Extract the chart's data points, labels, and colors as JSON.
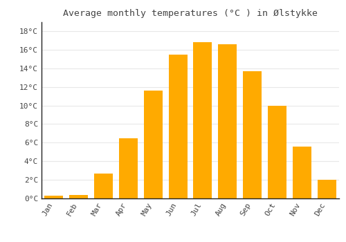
{
  "title": "Average monthly temperatures (°C ) in Ølstykke",
  "months": [
    "Jan",
    "Feb",
    "Mar",
    "Apr",
    "May",
    "Jun",
    "Jul",
    "Aug",
    "Sep",
    "Oct",
    "Nov",
    "Dec"
  ],
  "values": [
    0.3,
    0.4,
    2.7,
    6.5,
    11.6,
    15.5,
    16.8,
    16.6,
    13.7,
    10.0,
    5.6,
    2.0
  ],
  "bar_color": "#FFAA00",
  "bar_color_light": "#FFD060",
  "background_color": "#FFFFFF",
  "grid_color": "#E8E8E8",
  "spine_color": "#222222",
  "text_color": "#444444",
  "ylim": [
    0,
    19
  ],
  "yticks": [
    0,
    2,
    4,
    6,
    8,
    10,
    12,
    14,
    16,
    18
  ],
  "title_fontsize": 9.5,
  "tick_fontsize": 8,
  "bar_width": 0.75
}
